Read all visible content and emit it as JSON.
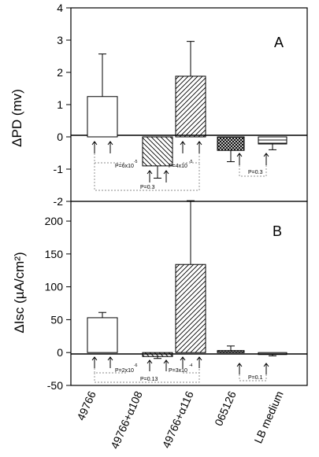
{
  "chart_data": [
    {
      "type": "bar",
      "panel_label": "A",
      "ylabel": "ΔPD (mv)",
      "ylim": [
        -2,
        4
      ],
      "yticks": [
        "-2",
        "-1",
        "0",
        "1",
        "2",
        "3",
        "4"
      ],
      "categories": [
        "49766",
        "49766+α108",
        "49766+α116",
        "065126",
        "LB medium"
      ],
      "values": [
        1.25,
        -0.9,
        1.88,
        -0.42,
        -0.22
      ],
      "errors": [
        1.32,
        0.38,
        1.08,
        0.35,
        0.18
      ],
      "fills": [
        "empty",
        "diagonal-down",
        "diagonal-up",
        "crosshatch",
        "horizontal"
      ],
      "annotations": [
        {
          "text": "P=6x10",
          "exp": "-5"
        },
        {
          "text": "P=4x10",
          "exp": "-5"
        },
        {
          "text": "P=0.3",
          "exp": ""
        },
        {
          "text": "P=0.3",
          "exp": ""
        }
      ]
    },
    {
      "type": "bar",
      "panel_label": "B",
      "ylabel": "ΔIsc (µA/cm²)",
      "ylim": [
        -50,
        230
      ],
      "yticks": [
        "-50",
        "0",
        "50",
        "100",
        "150",
        "200"
      ],
      "categories": [
        "49766",
        "49766+α108",
        "49766+α116",
        "065126",
        "LB medium"
      ],
      "values": [
        53,
        -6,
        134,
        3,
        -3
      ],
      "errors": [
        8,
        3,
        97,
        7,
        2
      ],
      "fills": [
        "empty",
        "diagonal-down",
        "diagonal-up",
        "crosshatch",
        "horizontal"
      ],
      "annotations": [
        {
          "text": "P=2x10",
          "exp": "-6"
        },
        {
          "text": "P=3x10",
          "exp": "-4"
        },
        {
          "text": "P=0.13",
          "exp": ""
        },
        {
          "text": "P=0.1",
          "exp": ""
        }
      ]
    }
  ],
  "x_categories": [
    "49766",
    "49766+α108",
    "49766+α116",
    "065126",
    "LB medium"
  ]
}
